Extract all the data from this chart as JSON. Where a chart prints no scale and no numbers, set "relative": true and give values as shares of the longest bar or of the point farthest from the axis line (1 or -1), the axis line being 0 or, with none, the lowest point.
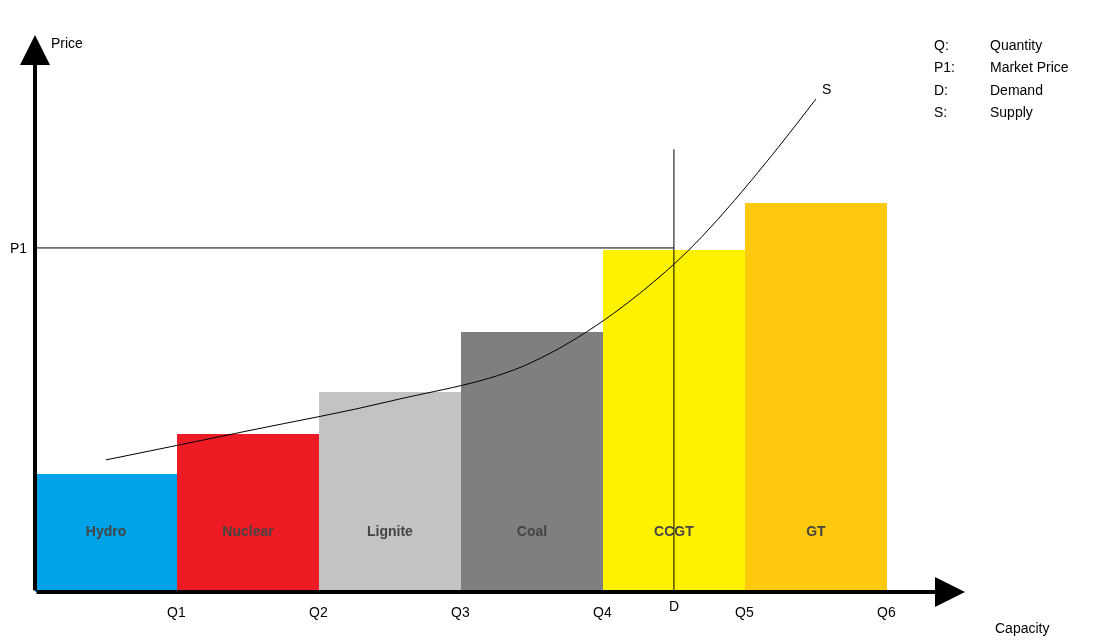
{
  "chart_data": {
    "type": "bar",
    "relative": true,
    "xlabel": "Capacity",
    "ylabel": "Price",
    "categories": [
      "Hydro",
      "Nuclear",
      "Lignite",
      "Coal",
      "CCGT",
      "GT"
    ],
    "series": [
      {
        "values": [
          0.24,
          0.32,
          0.405,
          0.528,
          0.693,
          0.789
        ],
        "colors": [
          "#00a2e8",
          "#ed1c24",
          "#c3c3c3",
          "#7f7f7f",
          "#fff200",
          "#ffc90e"
        ]
      },
      {
        "type": "line",
        "name": "S",
        "color": "#000000",
        "values": [
          0.268,
          0.327,
          0.387,
          0.466,
          0.665,
          1.0
        ]
      }
    ],
    "ref_lines": [
      {
        "axis": "y",
        "value": 0.698,
        "label": "P1",
        "color": "#000000"
      },
      {
        "axis": "x",
        "value": "CCGT",
        "label": "D",
        "color": "#000000"
      }
    ],
    "annotations": [
      "Q1",
      "Q2",
      "Q3",
      "Q4",
      "Q5",
      "Q6",
      "Q:\tQuantity",
      "P1:\tMarket Price",
      "D:\tDemand",
      "S:\tSupply"
    ],
    "tick_labels": "x",
    "legend": false
  }
}
